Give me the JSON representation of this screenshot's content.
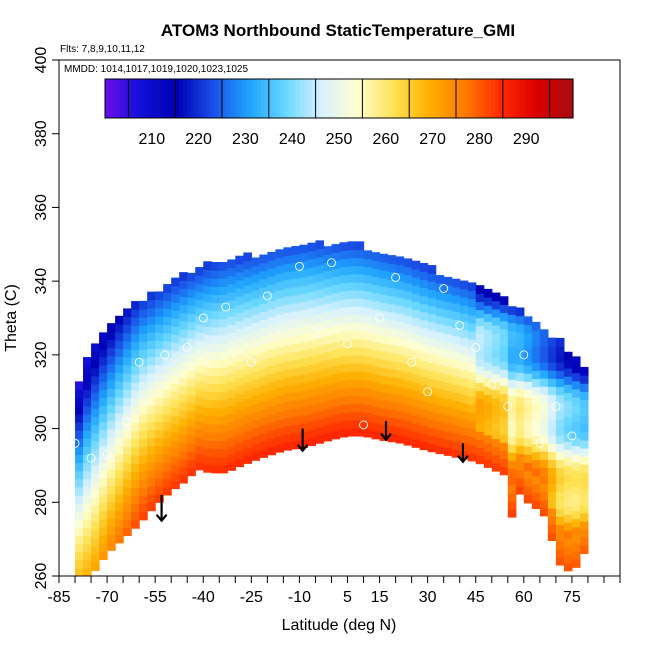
{
  "chart_data": {
    "type": "heatmap",
    "title": "ATOM3 Northbound StaticTemperature_GMI",
    "subtitle_flights": "Flts: 7,8,9,10,11,12",
    "subtitle_dates": "MMDD: 1014,1017,1019,1020,1023,1025",
    "xlabel": "Latitude (deg N)",
    "ylabel": "Theta (C)",
    "xlim": [
      -85,
      90
    ],
    "ylim": [
      260,
      400
    ],
    "x_ticks": [
      -85,
      -70,
      -55,
      -40,
      -25,
      -10,
      5,
      15,
      30,
      45,
      60,
      75
    ],
    "x_minor_ticks": [
      -80,
      -75,
      -65,
      -60,
      -50,
      -45,
      -35,
      -30,
      -20,
      -15,
      -5,
      0,
      10,
      20,
      25,
      35,
      40,
      50,
      55,
      65,
      70,
      80,
      85,
      90
    ],
    "y_ticks": [
      260,
      280,
      300,
      320,
      340,
      360,
      380,
      400
    ],
    "colorbar": {
      "min": 200,
      "max": 300,
      "ticks": [
        210,
        220,
        230,
        240,
        250,
        260,
        270,
        280,
        290
      ],
      "colors": [
        "#6a0fe8",
        "#1010d8",
        "#0000b4",
        "#1a4fe6",
        "#1fa3ff",
        "#66d6ff",
        "#d6f1ff",
        "#ffffd0",
        "#ffe357",
        "#ffb000",
        "#ff7a00",
        "#ff2a00",
        "#d90000",
        "#a80c12"
      ]
    },
    "surface_boundary": [
      [
        -75,
        260
      ],
      [
        -70,
        266
      ],
      [
        -65,
        270
      ],
      [
        -60,
        274
      ],
      [
        -55,
        279
      ],
      [
        -50,
        283
      ],
      [
        -45,
        286
      ],
      [
        -42,
        289
      ],
      [
        -38,
        288
      ],
      [
        -33,
        288
      ],
      [
        -28,
        290
      ],
      [
        -22,
        292
      ],
      [
        -15,
        294
      ],
      [
        -8,
        295
      ],
      [
        0,
        297
      ],
      [
        5,
        298
      ],
      [
        10,
        298
      ],
      [
        15,
        297
      ],
      [
        22,
        296
      ],
      [
        30,
        294
      ],
      [
        35,
        293
      ],
      [
        40,
        292
      ],
      [
        45,
        291
      ],
      [
        50,
        289
      ],
      [
        55,
        287
      ],
      [
        56,
        275
      ],
      [
        58,
        283
      ],
      [
        61,
        280
      ],
      [
        66,
        277
      ],
      [
        72,
        261
      ],
      [
        76,
        262
      ],
      [
        80,
        268
      ]
    ],
    "top_boundary": [
      [
        -80,
        294
      ],
      [
        -79,
        312
      ],
      [
        -76,
        320
      ],
      [
        -72,
        325
      ],
      [
        -66,
        330
      ],
      [
        -60,
        334
      ],
      [
        -54,
        337
      ],
      [
        -48,
        340
      ],
      [
        -40,
        343
      ],
      [
        -32,
        345
      ],
      [
        -24,
        346
      ],
      [
        -16,
        348
      ],
      [
        -8,
        349
      ],
      [
        0,
        349
      ],
      [
        8,
        349
      ],
      [
        16,
        347
      ],
      [
        24,
        345
      ],
      [
        32,
        342
      ],
      [
        40,
        340
      ],
      [
        48,
        337
      ],
      [
        54,
        334
      ],
      [
        60,
        330
      ],
      [
        66,
        326
      ],
      [
        72,
        322
      ],
      [
        77,
        318
      ],
      [
        80,
        314
      ],
      [
        80,
        268
      ]
    ],
    "profile_points": [
      {
        "lat": -80,
        "theta": 296,
        "value": 235
      },
      {
        "lat": -75,
        "theta": 292,
        "value": 232
      },
      {
        "lat": -70,
        "theta": 293,
        "value": 236
      },
      {
        "lat": -64,
        "theta": 302,
        "value": 232
      },
      {
        "lat": -60,
        "theta": 318,
        "value": 220
      },
      {
        "lat": -52,
        "theta": 320,
        "value": 224
      },
      {
        "lat": -45,
        "theta": 322,
        "value": 226
      },
      {
        "lat": -40,
        "theta": 330,
        "value": 217
      },
      {
        "lat": -33,
        "theta": 333,
        "value": 217
      },
      {
        "lat": -25,
        "theta": 318,
        "value": 255
      },
      {
        "lat": -20,
        "theta": 336,
        "value": 220
      },
      {
        "lat": -10,
        "theta": 344,
        "value": 220
      },
      {
        "lat": -5,
        "theta": 326,
        "value": 262
      },
      {
        "lat": 0,
        "theta": 345,
        "value": 222
      },
      {
        "lat": 5,
        "theta": 323,
        "value": 265
      },
      {
        "lat": 10,
        "theta": 301,
        "value": 290
      },
      {
        "lat": 15,
        "theta": 330,
        "value": 255
      },
      {
        "lat": 20,
        "theta": 341,
        "value": 224
      },
      {
        "lat": 25,
        "theta": 318,
        "value": 270
      },
      {
        "lat": 30,
        "theta": 310,
        "value": 280
      },
      {
        "lat": 35,
        "theta": 338,
        "value": 224
      },
      {
        "lat": 40,
        "theta": 328,
        "value": 243
      },
      {
        "lat": 45,
        "theta": 322,
        "value": 250
      },
      {
        "lat": 50,
        "theta": 312,
        "value": 246
      },
      {
        "lat": 55,
        "theta": 306,
        "value": 248
      },
      {
        "lat": 60,
        "theta": 320,
        "value": 230
      },
      {
        "lat": 65,
        "theta": 296,
        "value": 255
      },
      {
        "lat": 70,
        "theta": 306,
        "value": 236
      },
      {
        "lat": 75,
        "theta": 298,
        "value": 248
      }
    ],
    "arrows": [
      {
        "lat": -53,
        "theta_top": 282,
        "theta_bottom": 275
      },
      {
        "lat": -9,
        "theta_top": 300,
        "theta_bottom": 294
      },
      {
        "lat": 17,
        "theta_top": 302,
        "theta_bottom": 297
      },
      {
        "lat": 41,
        "theta_top": 296,
        "theta_bottom": 291
      }
    ]
  }
}
